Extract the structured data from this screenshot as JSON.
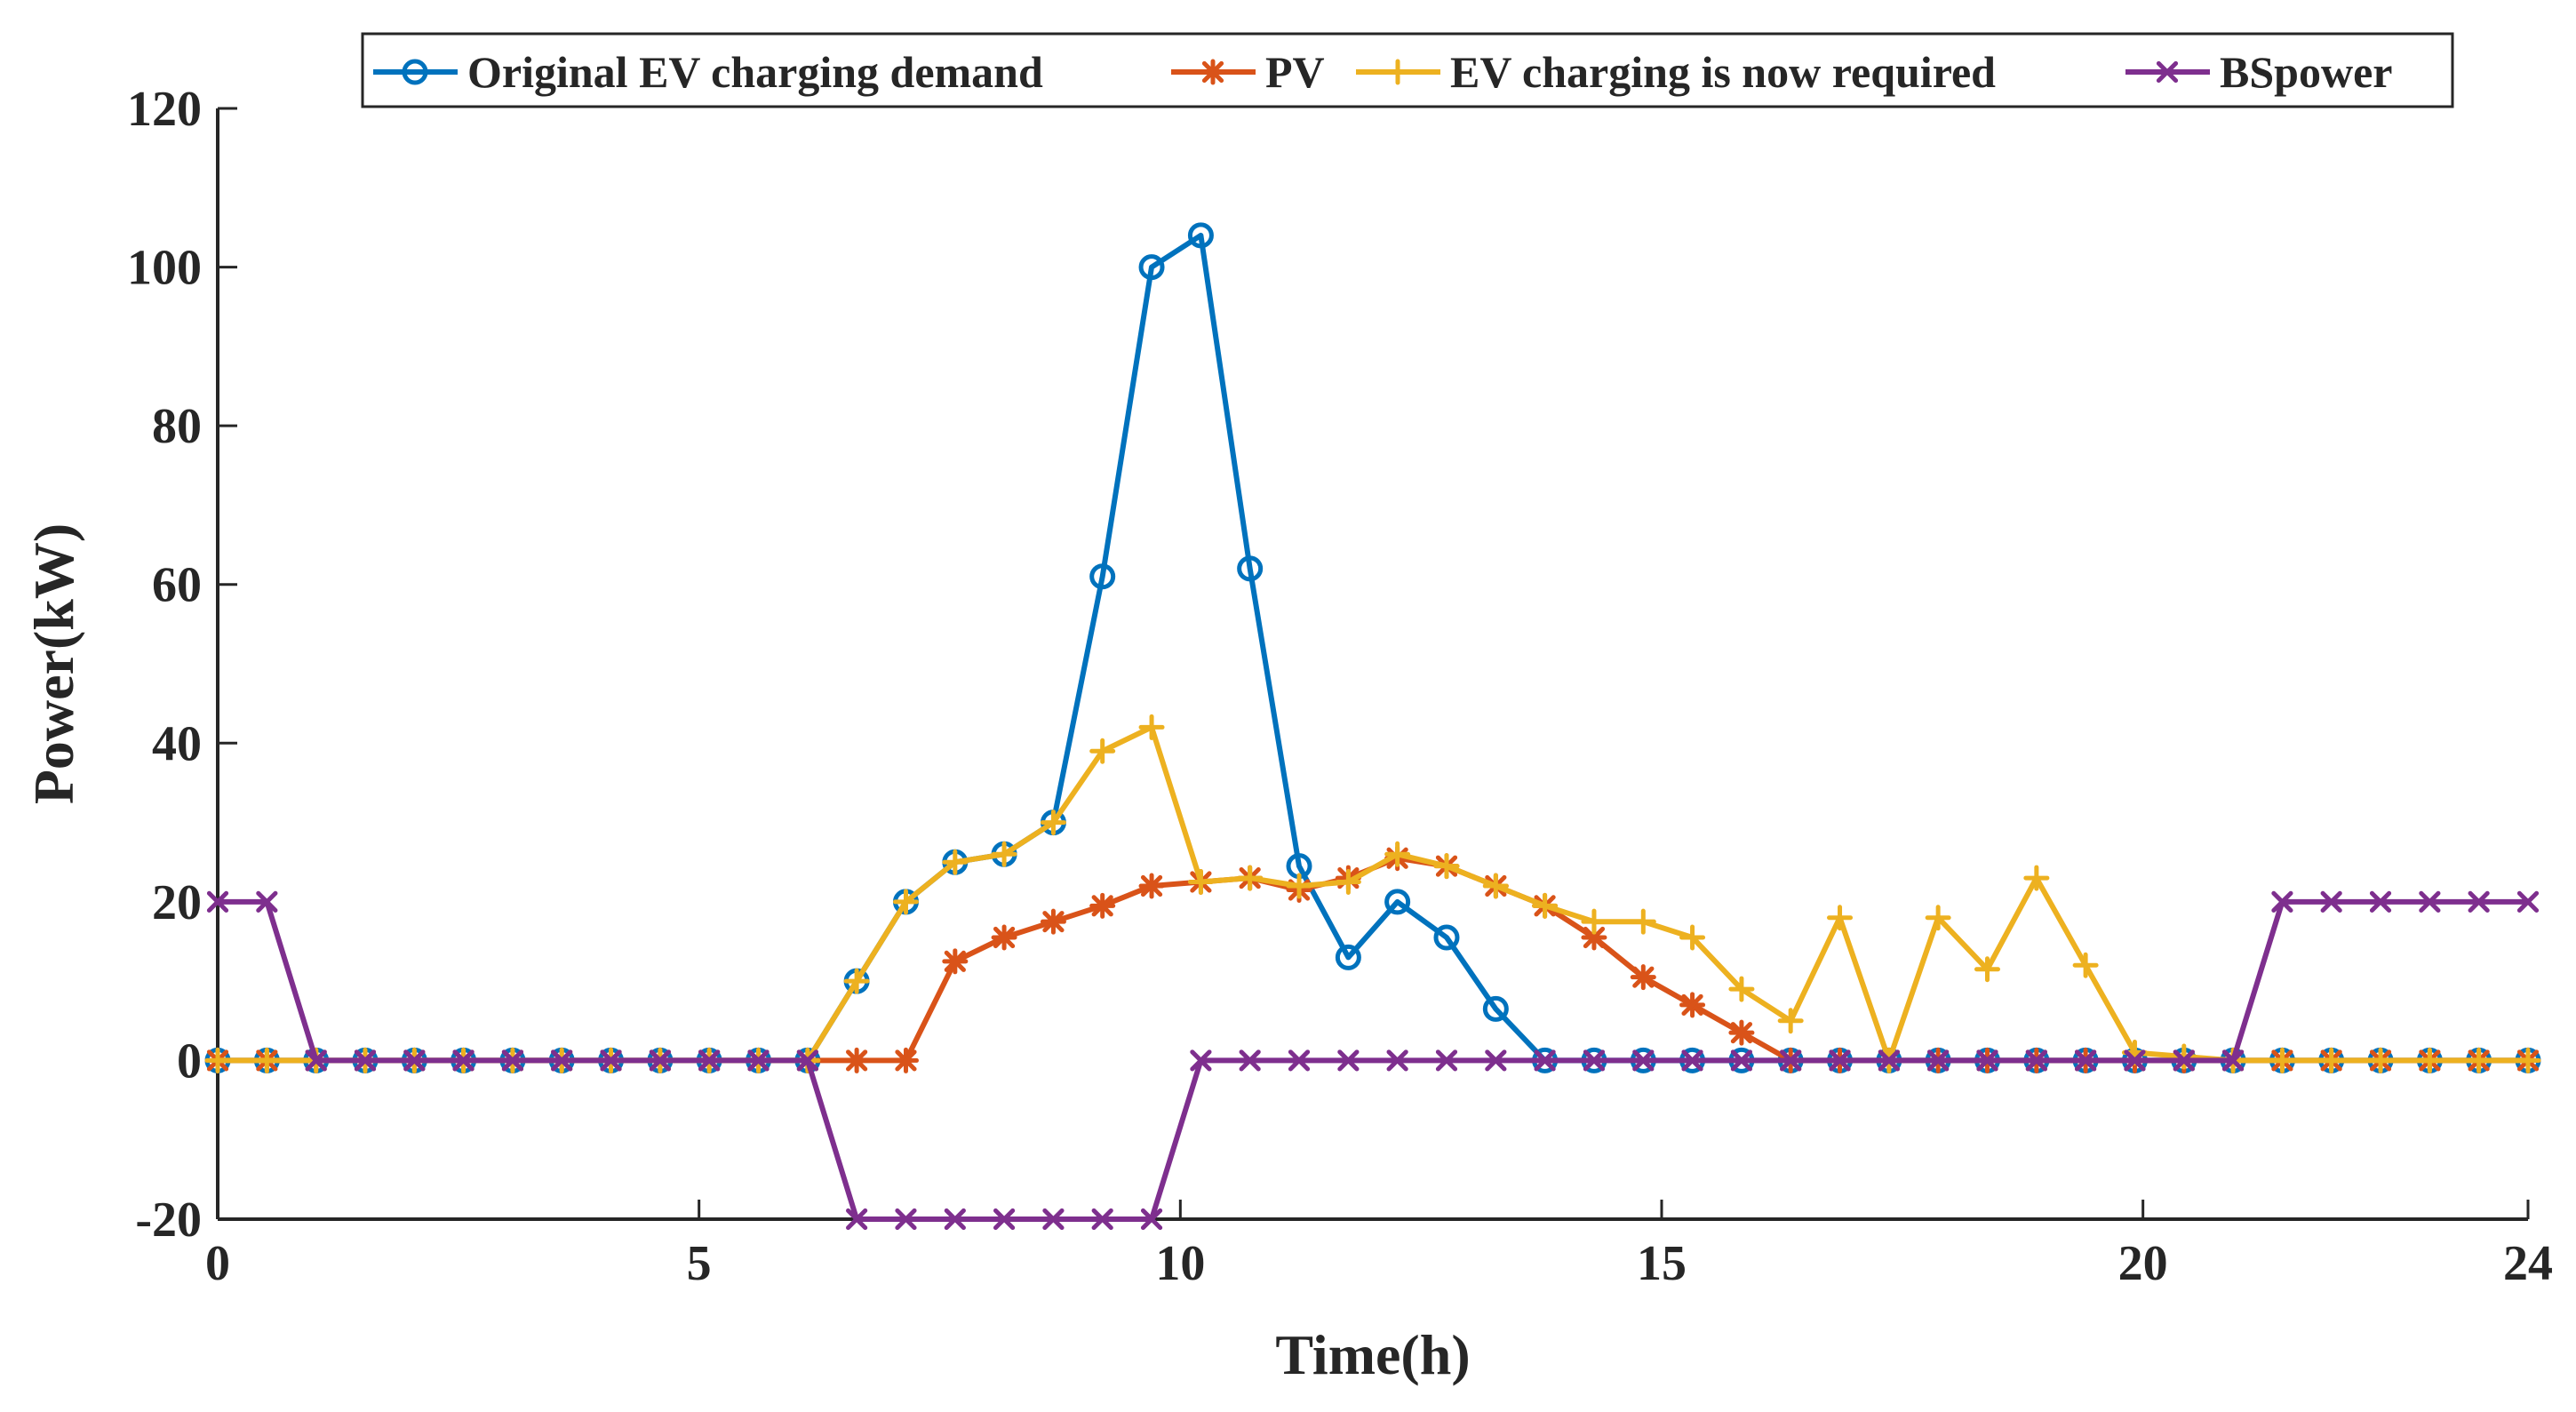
{
  "chart_data": {
    "type": "line",
    "title": "",
    "xlabel": "Time(h)",
    "ylabel": "Power(kW)",
    "xlim": [
      0,
      24
    ],
    "ylim": [
      -20,
      120
    ],
    "xticks": [
      0,
      5,
      10,
      15,
      20,
      24
    ],
    "xtick_labels": [
      "0",
      "5",
      "10",
      "15",
      "20",
      "24"
    ],
    "yticks": [
      -20,
      0,
      20,
      40,
      60,
      80,
      100,
      120
    ],
    "ytick_labels": [
      "-20",
      "0",
      "20",
      "40",
      "60",
      "80",
      "100",
      "120"
    ],
    "grid": false,
    "legend_position": "top",
    "x": [
      0,
      0.511,
      1.022,
      1.532,
      2.043,
      2.553,
      3.064,
      3.574,
      4.085,
      4.596,
      5.106,
      5.617,
      6.128,
      6.638,
      7.149,
      7.66,
      8.17,
      8.681,
      9.191,
      9.702,
      10.213,
      10.723,
      11.234,
      11.745,
      12.255,
      12.766,
      13.277,
      13.787,
      14.298,
      14.809,
      15.319,
      15.83,
      16.34,
      16.851,
      17.362,
      17.872,
      18.383,
      18.894,
      19.404,
      19.915,
      20.426,
      20.936,
      21.447,
      21.957,
      22.468,
      22.979,
      23.489,
      24
    ],
    "series": [
      {
        "name": "Original EV charging demand",
        "color": "#0072BD",
        "marker": "circle",
        "values": [
          0,
          0,
          0,
          0,
          0,
          0,
          0,
          0,
          0,
          0,
          0,
          0,
          0,
          10,
          20,
          25,
          26,
          30,
          61,
          100,
          104,
          62,
          24.5,
          13,
          20,
          15.5,
          6.5,
          0,
          0,
          0,
          0,
          0,
          0,
          0,
          0,
          0,
          0,
          0,
          0,
          0,
          0,
          0,
          0,
          0,
          0,
          0,
          0,
          0
        ]
      },
      {
        "name": "PV",
        "color": "#D95319",
        "marker": "asterisk",
        "values": [
          0,
          0,
          0,
          0,
          0,
          0,
          0,
          0,
          0,
          0,
          0,
          0,
          0,
          0,
          0,
          12.5,
          15.5,
          17.5,
          19.5,
          22,
          22.5,
          23,
          21.5,
          23,
          25.5,
          24.5,
          22,
          19.5,
          15.5,
          10.5,
          7,
          3.5,
          0,
          0,
          0,
          0,
          0,
          0,
          0,
          0,
          0,
          0,
          0,
          0,
          0,
          0,
          0,
          0
        ]
      },
      {
        "name": "EV charging is now required",
        "color": "#EDB120",
        "marker": "plus",
        "values": [
          0,
          0,
          0,
          0,
          0,
          0,
          0,
          0,
          0,
          0,
          0,
          0,
          0,
          10,
          20,
          25,
          26,
          30,
          39,
          42,
          22.5,
          23,
          22,
          22.5,
          26,
          24.5,
          22,
          19.5,
          17.5,
          17.5,
          15.5,
          9,
          5,
          18,
          0,
          18,
          11.5,
          23,
          12,
          1,
          0.5,
          0,
          0,
          0,
          0,
          0,
          0,
          0
        ]
      },
      {
        "name": "BSpower",
        "color": "#7E2F8E",
        "marker": "x",
        "values": [
          20,
          20,
          0,
          0,
          0,
          0,
          0,
          0,
          0,
          0,
          0,
          0,
          0,
          -20,
          -20,
          -20,
          -20,
          -20,
          -20,
          -20,
          0,
          0,
          0,
          0,
          0,
          0,
          0,
          0,
          0,
          0,
          0,
          0,
          0,
          0,
          0,
          0,
          0,
          0,
          0,
          0,
          0,
          0,
          20,
          20,
          20,
          20,
          20,
          20
        ]
      }
    ]
  }
}
